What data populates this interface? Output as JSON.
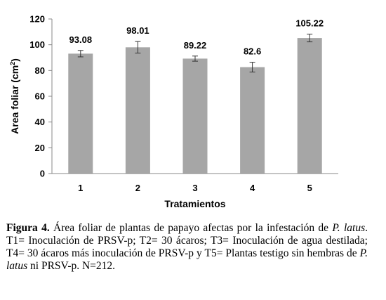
{
  "chart_data": {
    "type": "bar",
    "categories": [
      "1",
      "2",
      "3",
      "4",
      "5"
    ],
    "values": [
      93.08,
      98.01,
      89.22,
      82.6,
      105.22
    ],
    "errors": [
      2.5,
      4.5,
      2.0,
      3.8,
      3.0
    ],
    "data_labels": [
      "93.08",
      "98.01",
      "89.22",
      "82.6",
      "105.22"
    ],
    "title": "",
    "xlabel": "Tratamientos",
    "ylabel_main": "Area foliar (cm",
    "ylabel_sup": "2",
    "ylabel_end": ")",
    "ylim": [
      0,
      120
    ],
    "yticks": [
      0,
      20,
      40,
      60,
      80,
      100,
      120
    ],
    "bar_color": "#a6a6a6",
    "grid": false,
    "legend": "none"
  },
  "caption": {
    "label": "Figura 4.",
    "t1": " Área foliar de plantas de papayo afectas por la infestación de ",
    "species1": "P. latus",
    "t2": ". T1= Inoculación de PRSV-p; T2= 30 ácaros; T3= Inoculación de agua destilada; T4= 30 ácaros más inoculación de PRSV-p y T5= Plantas testigo sin hembras de ",
    "species2": "P. latus",
    "t3": " ni PRSV-p. N=212."
  }
}
